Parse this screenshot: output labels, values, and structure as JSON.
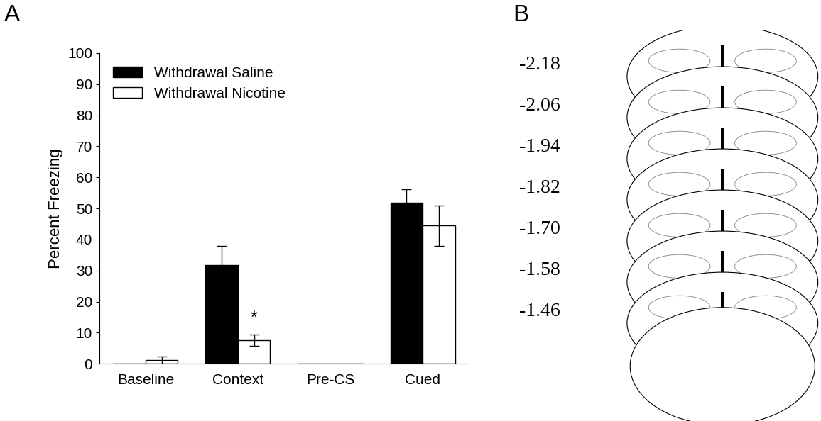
{
  "chart_data": {
    "type": "bar",
    "ylabel": "Percent Freezing",
    "categories": [
      "Baseline",
      "Context",
      "Pre-CS",
      "Cued"
    ],
    "series": [
      {
        "name": "Withdrawal Saline",
        "color": "#000000",
        "values": [
          0,
          31.8,
          0,
          51.8
        ],
        "errors": [
          0,
          6.2,
          0,
          4.3
        ]
      },
      {
        "name": "Withdrawal Nicotine",
        "color": "#ffffff",
        "values": [
          1.1,
          7.6,
          0,
          44.5
        ],
        "errors": [
          1.2,
          1.8,
          0,
          6.5
        ]
      }
    ],
    "ylim": [
      0,
      100
    ],
    "yticks": [
      0,
      10,
      20,
      30,
      40,
      50,
      60,
      70,
      80,
      90,
      100
    ],
    "legend": "upper left",
    "annotations": [
      {
        "text": "*",
        "category": "Context",
        "series": "Withdrawal Nicotine"
      }
    ]
  },
  "panel_labels": [
    "A",
    "B"
  ],
  "atlas": {
    "levels": [
      "-2.18",
      "-2.06",
      "-1.94",
      "-1.82",
      "-1.70",
      "-1.58",
      "-1.46"
    ]
  }
}
